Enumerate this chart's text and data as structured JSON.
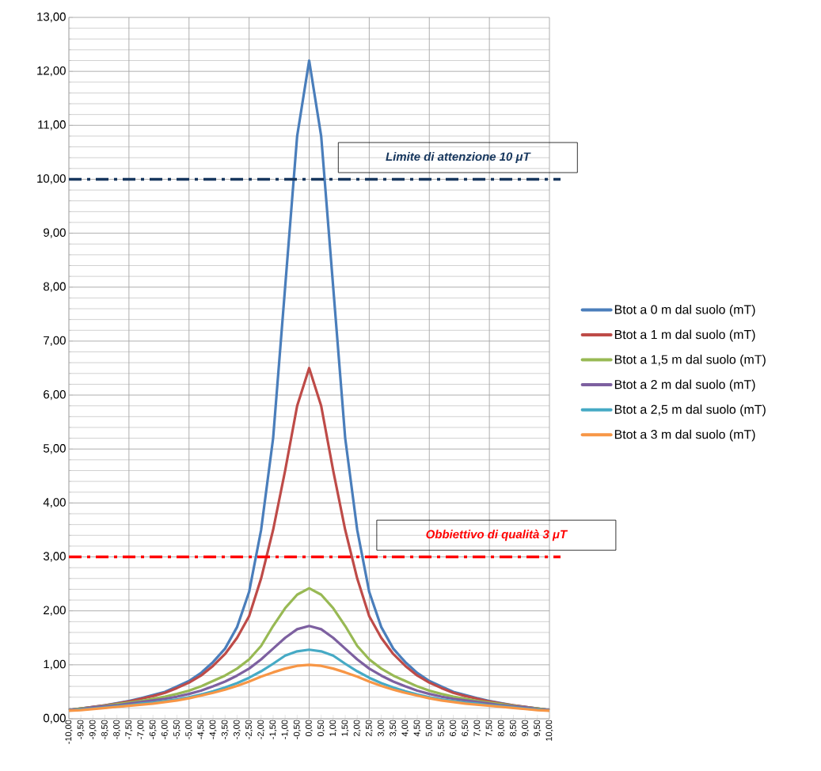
{
  "chart_data": {
    "type": "line",
    "categories": [
      "-10,00",
      "-9,50",
      "-9,00",
      "-8,50",
      "-8,00",
      "-7,50",
      "-7,00",
      "-6,50",
      "-6,00",
      "-5,50",
      "-5,00",
      "-4,50",
      "-4,00",
      "-3,50",
      "-3,00",
      "-2,50",
      "-2,00",
      "-1,50",
      "-1,00",
      "-0,50",
      "0,00",
      "0,50",
      "1,00",
      "1,50",
      "2,00",
      "2,50",
      "3,00",
      "3,50",
      "4,00",
      "4,50",
      "5,00",
      "5,50",
      "6,00",
      "6,50",
      "7,00",
      "7,50",
      "8,00",
      "8,50",
      "9,00",
      "9,50",
      "10,00"
    ],
    "series": [
      {
        "name": "Btot a 0 m dal suolo (mT)",
        "color": "#4a7ebb",
        "values": [
          0.16,
          0.19,
          0.22,
          0.25,
          0.29,
          0.33,
          0.38,
          0.44,
          0.5,
          0.6,
          0.7,
          0.85,
          1.05,
          1.3,
          1.7,
          2.35,
          3.5,
          5.2,
          8.0,
          10.8,
          12.2,
          10.8,
          8.0,
          5.2,
          3.5,
          2.35,
          1.7,
          1.3,
          1.05,
          0.85,
          0.7,
          0.6,
          0.5,
          0.44,
          0.38,
          0.33,
          0.29,
          0.25,
          0.22,
          0.19,
          0.16
        ]
      },
      {
        "name": "Btot a 1 m dal suolo (mT)",
        "color": "#be4b48",
        "values": [
          0.16,
          0.19,
          0.22,
          0.25,
          0.28,
          0.32,
          0.37,
          0.42,
          0.48,
          0.57,
          0.67,
          0.8,
          0.98,
          1.2,
          1.5,
          1.9,
          2.6,
          3.5,
          4.6,
          5.8,
          6.5,
          5.8,
          4.6,
          3.5,
          2.6,
          1.9,
          1.5,
          1.2,
          0.98,
          0.8,
          0.67,
          0.57,
          0.48,
          0.42,
          0.37,
          0.32,
          0.28,
          0.25,
          0.22,
          0.19,
          0.16
        ]
      },
      {
        "name": "Btot a 1,5 m dal suolo (mT)",
        "color": "#98b954",
        "values": [
          0.16,
          0.19,
          0.21,
          0.24,
          0.27,
          0.3,
          0.33,
          0.37,
          0.41,
          0.46,
          0.52,
          0.6,
          0.7,
          0.8,
          0.93,
          1.1,
          1.35,
          1.72,
          2.05,
          2.3,
          2.42,
          2.3,
          2.05,
          1.72,
          1.35,
          1.1,
          0.93,
          0.8,
          0.7,
          0.6,
          0.52,
          0.46,
          0.41,
          0.37,
          0.33,
          0.3,
          0.27,
          0.24,
          0.21,
          0.19,
          0.16
        ]
      },
      {
        "name": "Btot a 2 m dal suolo (mT)",
        "color": "#7d60a0",
        "values": [
          0.16,
          0.18,
          0.21,
          0.23,
          0.25,
          0.28,
          0.31,
          0.34,
          0.37,
          0.41,
          0.46,
          0.52,
          0.6,
          0.69,
          0.8,
          0.93,
          1.1,
          1.3,
          1.5,
          1.66,
          1.72,
          1.66,
          1.5,
          1.3,
          1.1,
          0.93,
          0.8,
          0.69,
          0.6,
          0.52,
          0.46,
          0.41,
          0.37,
          0.34,
          0.31,
          0.28,
          0.25,
          0.23,
          0.21,
          0.18,
          0.16
        ]
      },
      {
        "name": "Btot a 2,5 m dal suolo (mT)",
        "color": "#46aac5",
        "values": [
          0.15,
          0.17,
          0.19,
          0.21,
          0.23,
          0.25,
          0.28,
          0.3,
          0.33,
          0.36,
          0.4,
          0.45,
          0.51,
          0.58,
          0.66,
          0.76,
          0.88,
          1.02,
          1.17,
          1.25,
          1.28,
          1.25,
          1.17,
          1.02,
          0.88,
          0.76,
          0.66,
          0.58,
          0.51,
          0.45,
          0.4,
          0.36,
          0.33,
          0.3,
          0.28,
          0.25,
          0.23,
          0.21,
          0.19,
          0.17,
          0.15
        ]
      },
      {
        "name": "Btot a 3 m dal suolo (mT)",
        "color": "#f79646",
        "values": [
          0.15,
          0.16,
          0.18,
          0.2,
          0.22,
          0.24,
          0.26,
          0.28,
          0.31,
          0.34,
          0.38,
          0.43,
          0.48,
          0.54,
          0.61,
          0.69,
          0.78,
          0.86,
          0.93,
          0.98,
          1.0,
          0.98,
          0.93,
          0.86,
          0.78,
          0.69,
          0.61,
          0.54,
          0.48,
          0.43,
          0.38,
          0.34,
          0.31,
          0.28,
          0.26,
          0.24,
          0.22,
          0.2,
          0.18,
          0.16,
          0.15
        ]
      }
    ],
    "ylim": [
      0,
      13
    ],
    "yticks": [
      {
        "value": 0,
        "label": "0,00"
      },
      {
        "value": 1,
        "label": "1,00"
      },
      {
        "value": 2,
        "label": "2,00"
      },
      {
        "value": 3,
        "label": "3,00"
      },
      {
        "value": 4,
        "label": "4,00"
      },
      {
        "value": 5,
        "label": "5,00"
      },
      {
        "value": 6,
        "label": "6,00"
      },
      {
        "value": 7,
        "label": "7,00"
      },
      {
        "value": 8,
        "label": "8,00"
      },
      {
        "value": 9,
        "label": "9,00"
      },
      {
        "value": 10,
        "label": "10,00"
      },
      {
        "value": 11,
        "label": "11,00"
      },
      {
        "value": 12,
        "label": "12,00"
      },
      {
        "value": 13,
        "label": "13,00"
      }
    ],
    "ref_lines": [
      {
        "axis": "y",
        "value": 10,
        "label": "Limite di attenzione 10 **μT**",
        "color": "#17375e",
        "line_style": "dashed"
      },
      {
        "axis": "y",
        "value": 3,
        "label": "Obbiettivo di qualità 3 **μT**",
        "color": "#ff0000",
        "line_style": "dashed"
      }
    ],
    "grid": true,
    "legend": "right",
    "line_style": "solid"
  }
}
